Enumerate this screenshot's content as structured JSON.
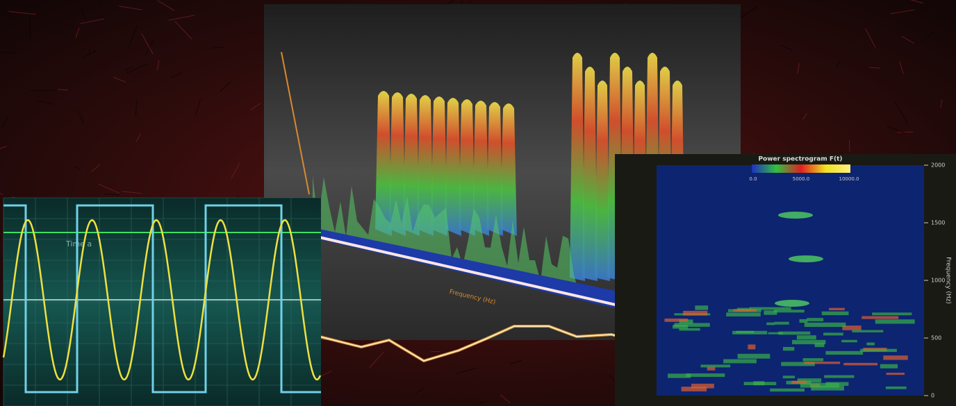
{
  "surface": {
    "x_label": "Frequency (Hz)"
  },
  "oscilloscope": {
    "cursor_label": "Time a"
  },
  "spectrogram": {
    "title": "Power spectrogram F(t)",
    "colorbar_labels": [
      "0.0",
      "5000.0",
      "10000.0"
    ],
    "y_ticks": [
      "2000",
      "1500",
      "1000",
      "500",
      "0"
    ],
    "y_label": "Frequency (Hz)"
  }
}
